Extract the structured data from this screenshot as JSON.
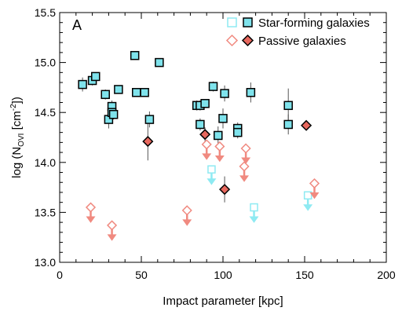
{
  "chart_data": {
    "type": "scatter",
    "panel_label": "A",
    "xlabel": "Impact parameter [kpc]",
    "ylabel": "log (N",
    "ylabel_sub": "OVI",
    "ylabel_unit": " [cm",
    "ylabel_sup": "-2",
    "ylabel_end": "])",
    "xlim": [
      0,
      200
    ],
    "ylim": [
      13.0,
      15.5
    ],
    "xticks": [
      "0",
      "50",
      "100",
      "150",
      "200"
    ],
    "yticks": [
      "13.0",
      "13.5",
      "14.0",
      "14.5",
      "15.0",
      "15.5"
    ],
    "legend": {
      "placement": "top-right",
      "entries": [
        "Star-forming galaxies",
        "Passive galaxies"
      ]
    },
    "colors": {
      "star_forming_fill": "#7fe3ec",
      "star_forming_upper": "#8eeaf2",
      "passive_fill": "#e8685e",
      "passive_upper": "#f08a80"
    },
    "series": [
      {
        "name": "Star-forming galaxies",
        "kind": "detection",
        "points": [
          {
            "x": 14,
            "y": 14.78,
            "err": 0.07
          },
          {
            "x": 20,
            "y": 14.82,
            "err": 0.05
          },
          {
            "x": 22,
            "y": 14.86,
            "err": 0.04
          },
          {
            "x": 28,
            "y": 14.68,
            "err": 0.05
          },
          {
            "x": 30,
            "y": 14.43,
            "err": 0.09
          },
          {
            "x": 32,
            "y": 14.56,
            "err": 0.06
          },
          {
            "x": 32,
            "y": 14.5,
            "err": 0.06
          },
          {
            "x": 33,
            "y": 14.48,
            "err": 0.05
          },
          {
            "x": 36,
            "y": 14.73,
            "err": 0.04
          },
          {
            "x": 46,
            "y": 15.07,
            "err": 0.03
          },
          {
            "x": 47,
            "y": 14.7,
            "err": 0.04
          },
          {
            "x": 52,
            "y": 14.7,
            "err": 0.04
          },
          {
            "x": 55,
            "y": 14.43,
            "err": 0.08
          },
          {
            "x": 61,
            "y": 15.0,
            "err": 0.03
          },
          {
            "x": 84,
            "y": 14.57,
            "err": 0.05
          },
          {
            "x": 86,
            "y": 14.57,
            "err": 0.05
          },
          {
            "x": 86,
            "y": 14.38,
            "err": 0.06
          },
          {
            "x": 89,
            "y": 14.59,
            "err": 0.04
          },
          {
            "x": 94,
            "y": 14.76,
            "err": 0.05
          },
          {
            "x": 97,
            "y": 14.27,
            "err": 0.09
          },
          {
            "x": 100,
            "y": 14.44,
            "err": 0.1
          },
          {
            "x": 101,
            "y": 14.69,
            "err": 0.08
          },
          {
            "x": 109,
            "y": 14.34,
            "err": 0.06
          },
          {
            "x": 109,
            "y": 14.3,
            "err": 0.06
          },
          {
            "x": 117,
            "y": 14.7,
            "err": 0.1
          },
          {
            "x": 140,
            "y": 14.57,
            "err": 0.17
          },
          {
            "x": 140,
            "y": 14.38,
            "err": 0.1
          }
        ]
      },
      {
        "name": "Passive galaxies",
        "kind": "detection",
        "points": [
          {
            "x": 54,
            "y": 14.21,
            "err": 0.19
          },
          {
            "x": 89,
            "y": 14.28,
            "err": 0.07
          },
          {
            "x": 101,
            "y": 13.73,
            "err": 0.13
          },
          {
            "x": 151,
            "y": 14.37,
            "err": 0.03
          }
        ]
      },
      {
        "name": "Star-forming galaxies",
        "kind": "upper_limit",
        "points": [
          {
            "x": 93,
            "y": 13.93
          },
          {
            "x": 119,
            "y": 13.55
          },
          {
            "x": 152,
            "y": 13.67
          }
        ]
      },
      {
        "name": "Passive galaxies",
        "kind": "upper_limit",
        "points": [
          {
            "x": 19,
            "y": 13.55
          },
          {
            "x": 32,
            "y": 13.37
          },
          {
            "x": 78,
            "y": 13.52
          },
          {
            "x": 90,
            "y": 14.18
          },
          {
            "x": 98,
            "y": 14.16
          },
          {
            "x": 113,
            "y": 13.96
          },
          {
            "x": 114,
            "y": 14.14
          },
          {
            "x": 156,
            "y": 13.79
          }
        ]
      }
    ]
  }
}
